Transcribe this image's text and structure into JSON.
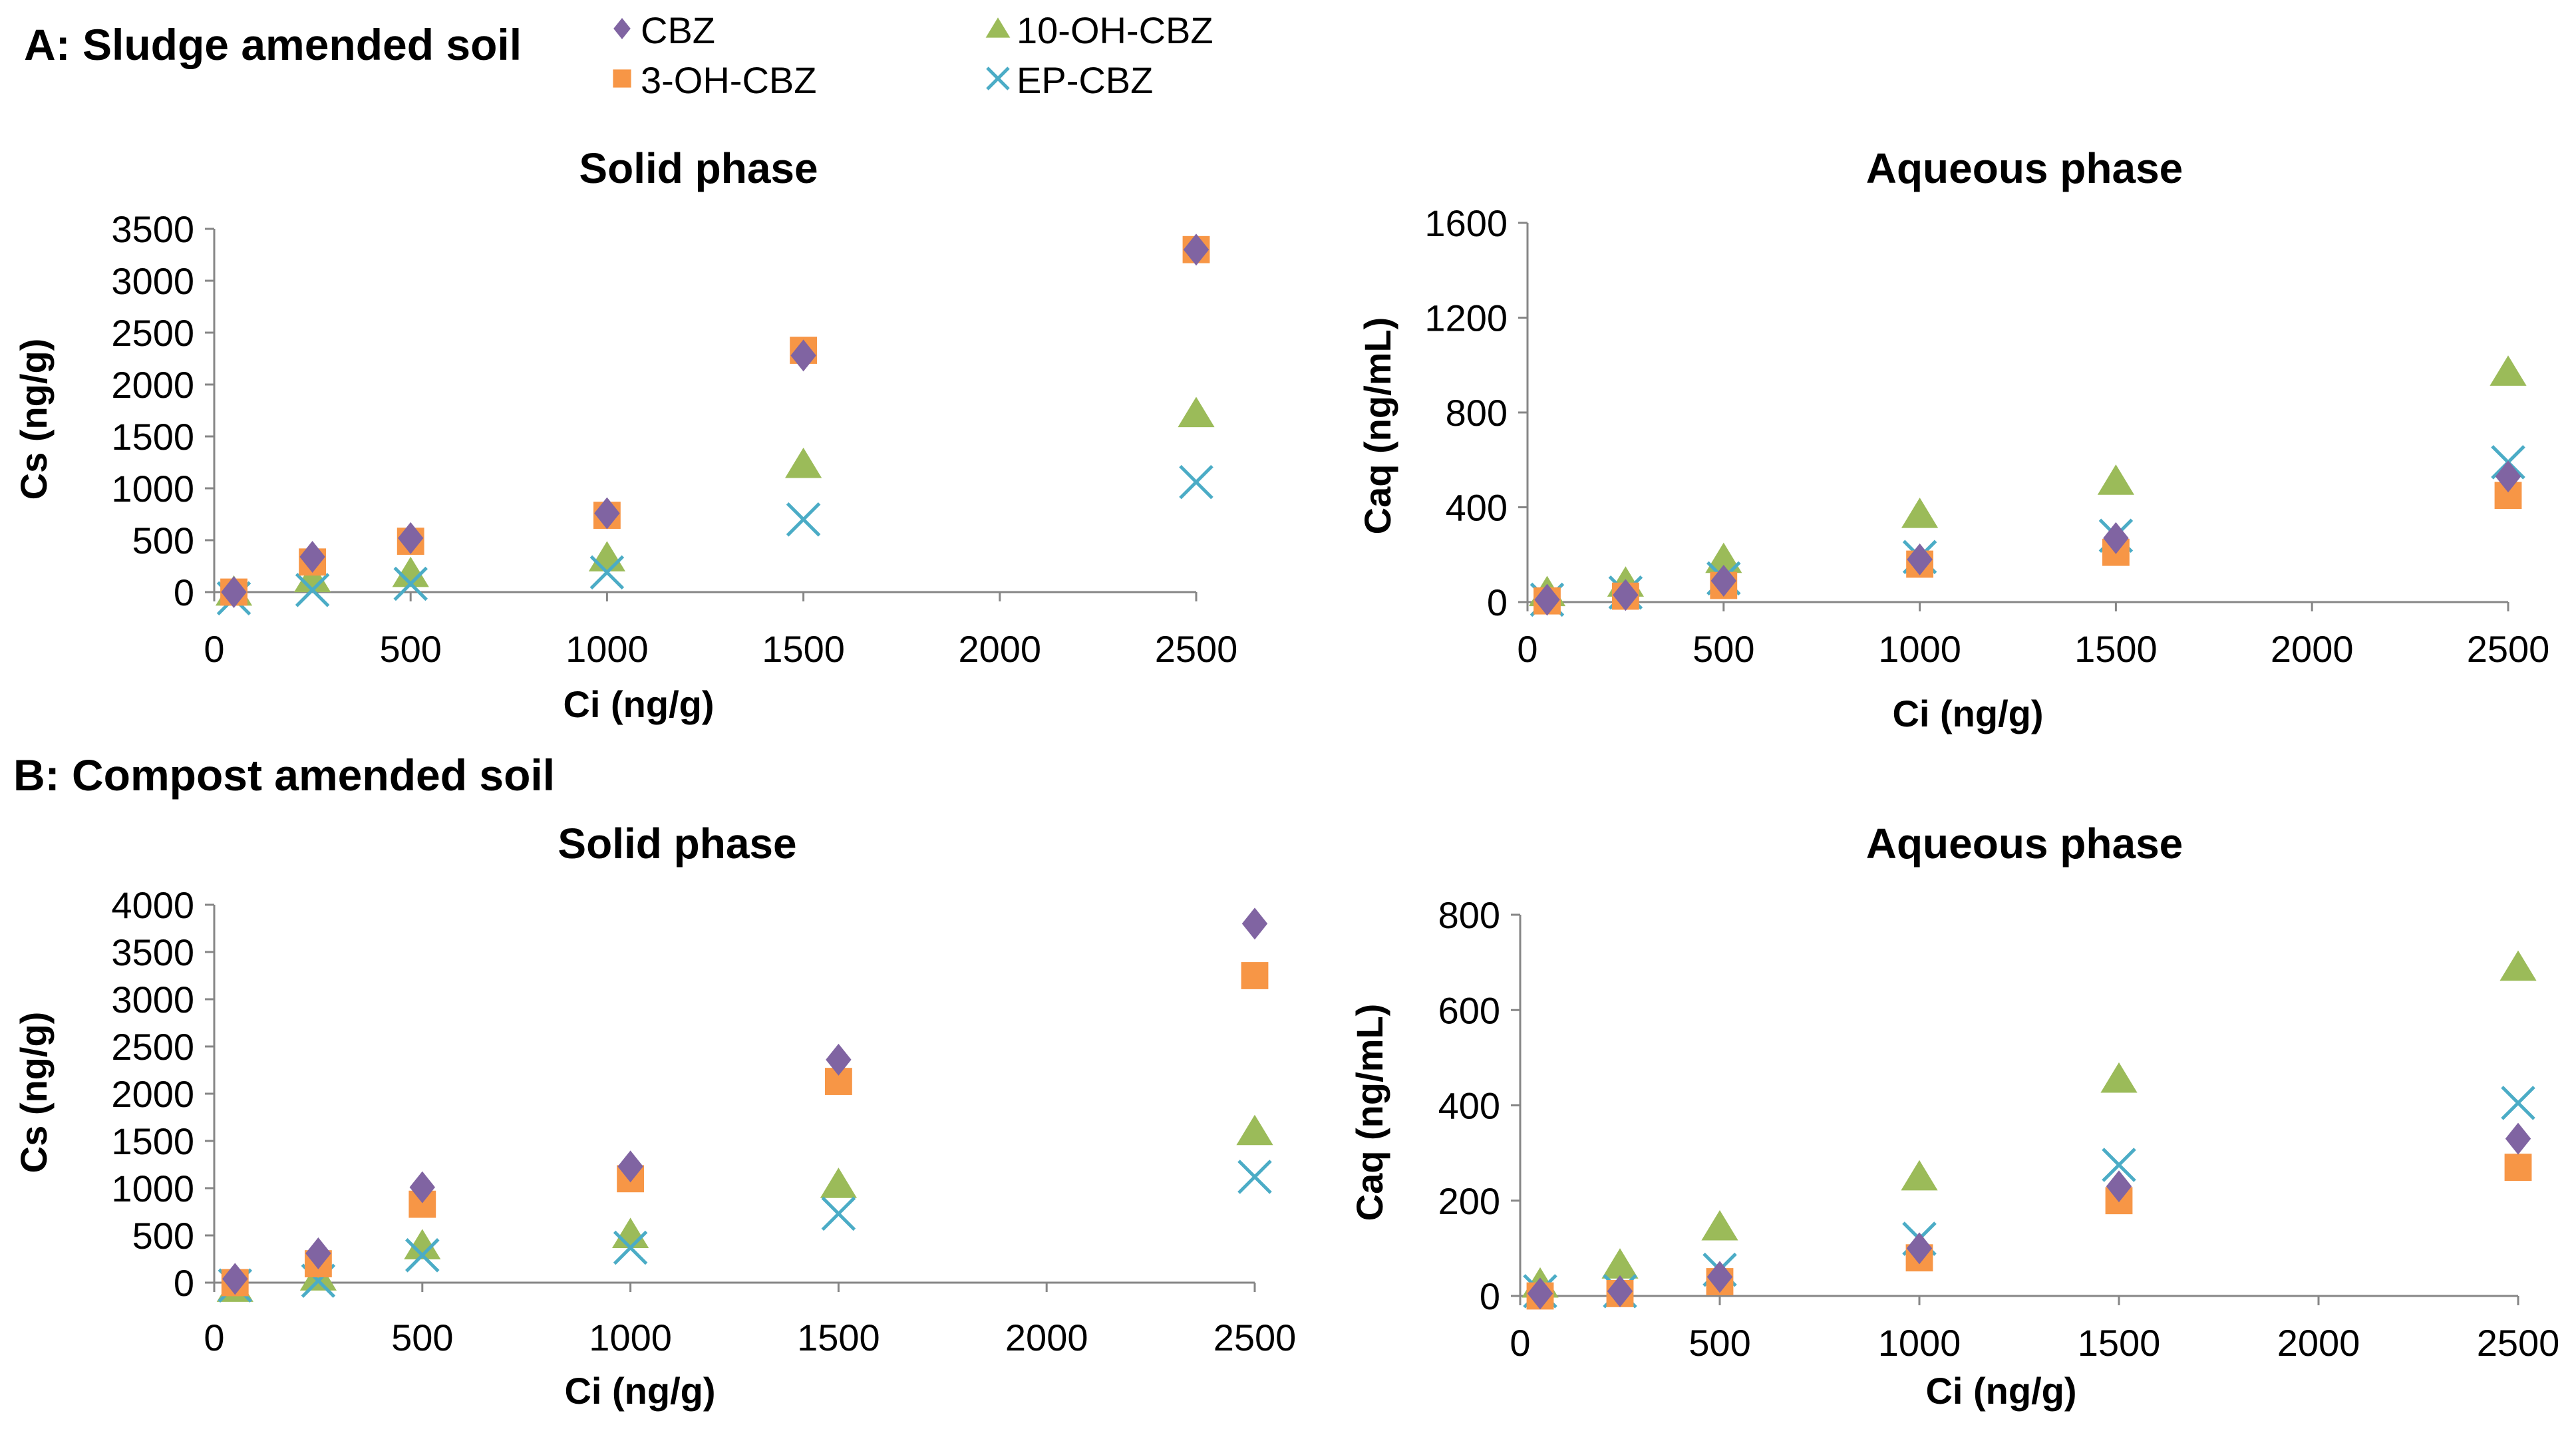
{
  "figure": {
    "panel_a_title": "A: Sludge amended soil",
    "panel_b_title": "B: Compost amended soil"
  },
  "legend": [
    {
      "label": "CBZ",
      "marker": "diamond",
      "color": "#8064a2"
    },
    {
      "label": "3-OH-CBZ",
      "marker": "square",
      "color": "#f79646"
    },
    {
      "label": "10-OH-CBZ",
      "marker": "triangle",
      "color": "#9bbb59"
    },
    {
      "label": "EP-CBZ",
      "marker": "x",
      "color": "#4bacc6"
    }
  ],
  "chart_data": [
    {
      "id": "a-solid",
      "type": "scatter",
      "title": "Solid phase",
      "xlabel": "Ci (ng/g)",
      "ylabel": "Cs (ng/g)",
      "xlim": [
        0,
        2500
      ],
      "ylim": [
        0,
        3500
      ],
      "xticks": [
        0,
        500,
        1000,
        1500,
        2000,
        2500
      ],
      "yticks": [
        0,
        500,
        1000,
        1500,
        2000,
        2500,
        3000,
        3500
      ],
      "x": [
        50,
        250,
        500,
        1000,
        1500,
        2500
      ],
      "series": [
        {
          "name": "CBZ",
          "values": [
            0,
            340,
            520,
            760,
            2280,
            3300
          ]
        },
        {
          "name": "3-OH-CBZ",
          "values": [
            0,
            290,
            490,
            740,
            2330,
            3300
          ]
        },
        {
          "name": "10-OH-CBZ",
          "values": [
            0,
            130,
            180,
            330,
            1230,
            1720
          ]
        },
        {
          "name": "EP-CBZ",
          "values": [
            -60,
            20,
            80,
            190,
            700,
            1060
          ]
        }
      ]
    },
    {
      "id": "a-aqueous",
      "type": "scatter",
      "title": "Aqueous phase",
      "xlabel": "Ci (ng/g)",
      "ylabel": "Caq (ng/mL)",
      "xlim": [
        0,
        2500
      ],
      "ylim": [
        0,
        1600
      ],
      "xticks": [
        0,
        500,
        1000,
        1500,
        2000,
        2500
      ],
      "yticks": [
        0,
        400,
        800,
        1200,
        1600
      ],
      "x": [
        50,
        250,
        500,
        1000,
        1500,
        2500
      ],
      "series": [
        {
          "name": "CBZ",
          "values": [
            10,
            30,
            90,
            180,
            270,
            530
          ]
        },
        {
          "name": "3-OH-CBZ",
          "values": [
            5,
            25,
            70,
            160,
            210,
            450
          ]
        },
        {
          "name": "10-OH-CBZ",
          "values": [
            40,
            80,
            180,
            370,
            510,
            970
          ]
        },
        {
          "name": "EP-CBZ",
          "values": [
            10,
            40,
            100,
            190,
            280,
            590
          ]
        }
      ]
    },
    {
      "id": "b-solid",
      "type": "scatter",
      "title": "Solid phase",
      "xlabel": "Ci (ng/g)",
      "ylabel": "Cs (ng/g)",
      "xlim": [
        0,
        2500
      ],
      "ylim": [
        0,
        4000
      ],
      "xticks": [
        0,
        500,
        1000,
        1500,
        2000,
        2500
      ],
      "yticks": [
        0,
        500,
        1000,
        1500,
        2000,
        2500,
        3000,
        3500,
        4000
      ],
      "x": [
        50,
        250,
        500,
        1000,
        1500,
        2500
      ],
      "series": [
        {
          "name": "CBZ",
          "values": [
            40,
            310,
            1010,
            1230,
            2360,
            3800
          ]
        },
        {
          "name": "3-OH-CBZ",
          "values": [
            0,
            200,
            830,
            1100,
            2130,
            3250
          ]
        },
        {
          "name": "10-OH-CBZ",
          "values": [
            -60,
            60,
            390,
            510,
            1040,
            1600
          ]
        },
        {
          "name": "EP-CBZ",
          "values": [
            -30,
            20,
            290,
            370,
            730,
            1120
          ]
        }
      ]
    },
    {
      "id": "b-aqueous",
      "type": "scatter",
      "title": "Aqueous phase",
      "xlabel": "Ci (ng/g)",
      "ylabel": "Caq (ng/mL)",
      "xlim": [
        0,
        2500
      ],
      "ylim": [
        0,
        800
      ],
      "xticks": [
        0,
        500,
        1000,
        1500,
        2000,
        2500
      ],
      "yticks": [
        0,
        200,
        400,
        600,
        800
      ],
      "x": [
        50,
        250,
        500,
        1000,
        1500,
        2500
      ],
      "series": [
        {
          "name": "CBZ",
          "values": [
            5,
            10,
            40,
            100,
            230,
            330
          ]
        },
        {
          "name": "3-OH-CBZ",
          "values": [
            0,
            5,
            30,
            80,
            200,
            270
          ]
        },
        {
          "name": "10-OH-CBZ",
          "values": [
            25,
            65,
            145,
            250,
            455,
            690
          ]
        },
        {
          "name": "EP-CBZ",
          "values": [
            10,
            10,
            55,
            120,
            275,
            405
          ]
        }
      ]
    }
  ]
}
